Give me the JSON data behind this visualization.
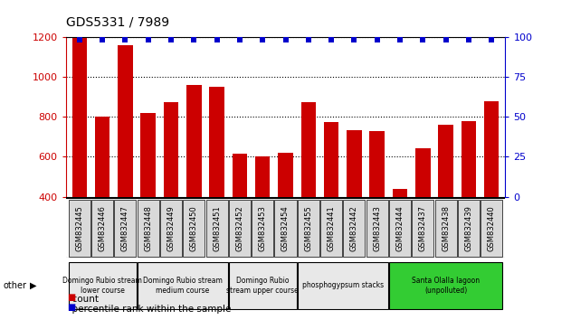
{
  "title": "GDS5331 / 7989",
  "samples": [
    "GSM832445",
    "GSM832446",
    "GSM832447",
    "GSM832448",
    "GSM832449",
    "GSM832450",
    "GSM832451",
    "GSM832452",
    "GSM832453",
    "GSM832454",
    "GSM832455",
    "GSM832441",
    "GSM832442",
    "GSM832443",
    "GSM832444",
    "GSM832437",
    "GSM832438",
    "GSM832439",
    "GSM832440"
  ],
  "counts": [
    1195,
    800,
    1160,
    820,
    875,
    960,
    950,
    615,
    600,
    620,
    875,
    775,
    735,
    730,
    440,
    645,
    760,
    780,
    880
  ],
  "percentiles": [
    98,
    98,
    98,
    98,
    98,
    98,
    98,
    98,
    98,
    98,
    98,
    98,
    98,
    98,
    98,
    98,
    98,
    98,
    98
  ],
  "ylim_left": [
    400,
    1200
  ],
  "ylim_right": [
    0,
    100
  ],
  "yticks_left": [
    400,
    600,
    800,
    1000,
    1200
  ],
  "yticks_right": [
    0,
    25,
    50,
    75,
    100
  ],
  "bar_color": "#cc0000",
  "dot_color": "#0000cc",
  "groups": [
    {
      "label": "Domingo Rubio stream\nlower course",
      "start": 0,
      "end": 3,
      "color": "#e8e8e8"
    },
    {
      "label": "Domingo Rubio stream\nmedium course",
      "start": 3,
      "end": 7,
      "color": "#e8e8e8"
    },
    {
      "label": "Domingo Rubio\nstream upper course",
      "start": 7,
      "end": 10,
      "color": "#e8e8e8"
    },
    {
      "label": "phosphogypsum stacks",
      "start": 10,
      "end": 14,
      "color": "#e8e8e8"
    },
    {
      "label": "Santa Olalla lagoon\n(unpolluted)",
      "start": 14,
      "end": 19,
      "color": "#33cc33"
    }
  ],
  "other_label": "other",
  "left_axis_color": "#cc0000",
  "right_axis_color": "#0000cc",
  "tick_label_bg": "#d9d9d9",
  "group_bg_gray": "#e8f5e8",
  "group_border": "#000000"
}
